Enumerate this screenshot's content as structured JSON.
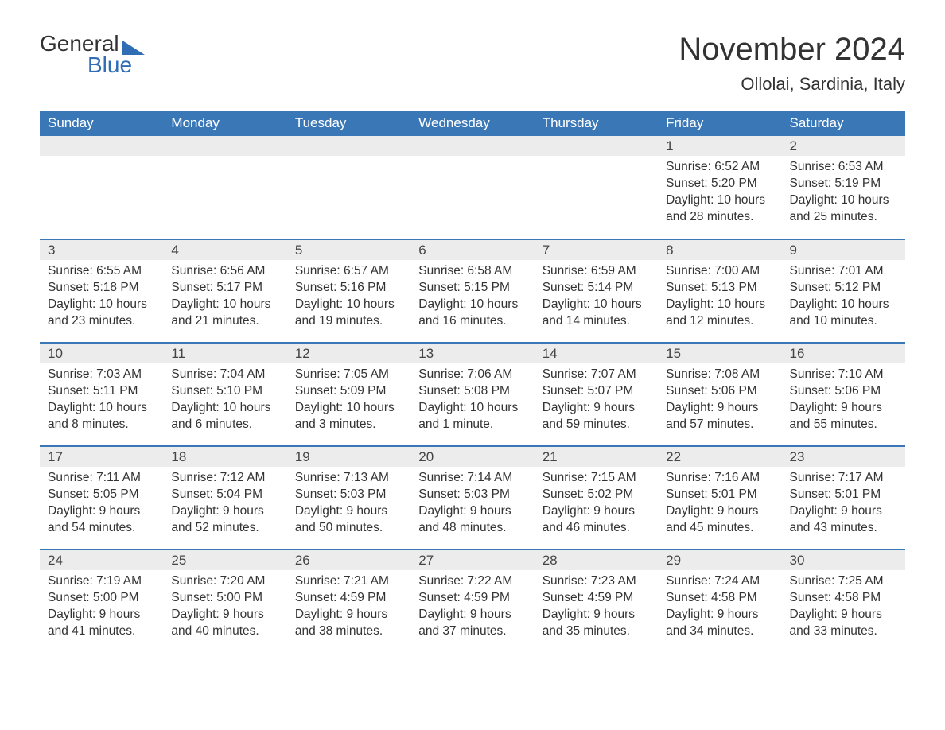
{
  "logo": {
    "word1": "General",
    "word2": "Blue"
  },
  "title": "November 2024",
  "location": "Ollolai, Sardinia, Italy",
  "colors": {
    "header_bg": "#3a77b7",
    "header_text": "#ffffff",
    "daynum_bg": "#ececec",
    "row_border": "#3a77b7",
    "text": "#333333",
    "logo_blue": "#2f6eb5",
    "page_bg": "#ffffff"
  },
  "typography": {
    "title_fontsize": 40,
    "location_fontsize": 22,
    "header_fontsize": 17,
    "daynum_fontsize": 17,
    "body_fontsize": 15.5,
    "font_family": "Arial"
  },
  "weekdays": [
    "Sunday",
    "Monday",
    "Tuesday",
    "Wednesday",
    "Thursday",
    "Friday",
    "Saturday"
  ],
  "weeks": [
    [
      null,
      null,
      null,
      null,
      null,
      {
        "n": "1",
        "sr": "6:52 AM",
        "ss": "5:20 PM",
        "dl1": "10 hours",
        "dl2": "and 28 minutes."
      },
      {
        "n": "2",
        "sr": "6:53 AM",
        "ss": "5:19 PM",
        "dl1": "10 hours",
        "dl2": "and 25 minutes."
      }
    ],
    [
      {
        "n": "3",
        "sr": "6:55 AM",
        "ss": "5:18 PM",
        "dl1": "10 hours",
        "dl2": "and 23 minutes."
      },
      {
        "n": "4",
        "sr": "6:56 AM",
        "ss": "5:17 PM",
        "dl1": "10 hours",
        "dl2": "and 21 minutes."
      },
      {
        "n": "5",
        "sr": "6:57 AM",
        "ss": "5:16 PM",
        "dl1": "10 hours",
        "dl2": "and 19 minutes."
      },
      {
        "n": "6",
        "sr": "6:58 AM",
        "ss": "5:15 PM",
        "dl1": "10 hours",
        "dl2": "and 16 minutes."
      },
      {
        "n": "7",
        "sr": "6:59 AM",
        "ss": "5:14 PM",
        "dl1": "10 hours",
        "dl2": "and 14 minutes."
      },
      {
        "n": "8",
        "sr": "7:00 AM",
        "ss": "5:13 PM",
        "dl1": "10 hours",
        "dl2": "and 12 minutes."
      },
      {
        "n": "9",
        "sr": "7:01 AM",
        "ss": "5:12 PM",
        "dl1": "10 hours",
        "dl2": "and 10 minutes."
      }
    ],
    [
      {
        "n": "10",
        "sr": "7:03 AM",
        "ss": "5:11 PM",
        "dl1": "10 hours",
        "dl2": "and 8 minutes."
      },
      {
        "n": "11",
        "sr": "7:04 AM",
        "ss": "5:10 PM",
        "dl1": "10 hours",
        "dl2": "and 6 minutes."
      },
      {
        "n": "12",
        "sr": "7:05 AM",
        "ss": "5:09 PM",
        "dl1": "10 hours",
        "dl2": "and 3 minutes."
      },
      {
        "n": "13",
        "sr": "7:06 AM",
        "ss": "5:08 PM",
        "dl1": "10 hours",
        "dl2": "and 1 minute."
      },
      {
        "n": "14",
        "sr": "7:07 AM",
        "ss": "5:07 PM",
        "dl1": "9 hours",
        "dl2": "and 59 minutes."
      },
      {
        "n": "15",
        "sr": "7:08 AM",
        "ss": "5:06 PM",
        "dl1": "9 hours",
        "dl2": "and 57 minutes."
      },
      {
        "n": "16",
        "sr": "7:10 AM",
        "ss": "5:06 PM",
        "dl1": "9 hours",
        "dl2": "and 55 minutes."
      }
    ],
    [
      {
        "n": "17",
        "sr": "7:11 AM",
        "ss": "5:05 PM",
        "dl1": "9 hours",
        "dl2": "and 54 minutes."
      },
      {
        "n": "18",
        "sr": "7:12 AM",
        "ss": "5:04 PM",
        "dl1": "9 hours",
        "dl2": "and 52 minutes."
      },
      {
        "n": "19",
        "sr": "7:13 AM",
        "ss": "5:03 PM",
        "dl1": "9 hours",
        "dl2": "and 50 minutes."
      },
      {
        "n": "20",
        "sr": "7:14 AM",
        "ss": "5:03 PM",
        "dl1": "9 hours",
        "dl2": "and 48 minutes."
      },
      {
        "n": "21",
        "sr": "7:15 AM",
        "ss": "5:02 PM",
        "dl1": "9 hours",
        "dl2": "and 46 minutes."
      },
      {
        "n": "22",
        "sr": "7:16 AM",
        "ss": "5:01 PM",
        "dl1": "9 hours",
        "dl2": "and 45 minutes."
      },
      {
        "n": "23",
        "sr": "7:17 AM",
        "ss": "5:01 PM",
        "dl1": "9 hours",
        "dl2": "and 43 minutes."
      }
    ],
    [
      {
        "n": "24",
        "sr": "7:19 AM",
        "ss": "5:00 PM",
        "dl1": "9 hours",
        "dl2": "and 41 minutes."
      },
      {
        "n": "25",
        "sr": "7:20 AM",
        "ss": "5:00 PM",
        "dl1": "9 hours",
        "dl2": "and 40 minutes."
      },
      {
        "n": "26",
        "sr": "7:21 AM",
        "ss": "4:59 PM",
        "dl1": "9 hours",
        "dl2": "and 38 minutes."
      },
      {
        "n": "27",
        "sr": "7:22 AM",
        "ss": "4:59 PM",
        "dl1": "9 hours",
        "dl2": "and 37 minutes."
      },
      {
        "n": "28",
        "sr": "7:23 AM",
        "ss": "4:59 PM",
        "dl1": "9 hours",
        "dl2": "and 35 minutes."
      },
      {
        "n": "29",
        "sr": "7:24 AM",
        "ss": "4:58 PM",
        "dl1": "9 hours",
        "dl2": "and 34 minutes."
      },
      {
        "n": "30",
        "sr": "7:25 AM",
        "ss": "4:58 PM",
        "dl1": "9 hours",
        "dl2": "and 33 minutes."
      }
    ]
  ],
  "labels": {
    "sunrise": "Sunrise: ",
    "sunset": "Sunset: ",
    "daylight": "Daylight: "
  }
}
